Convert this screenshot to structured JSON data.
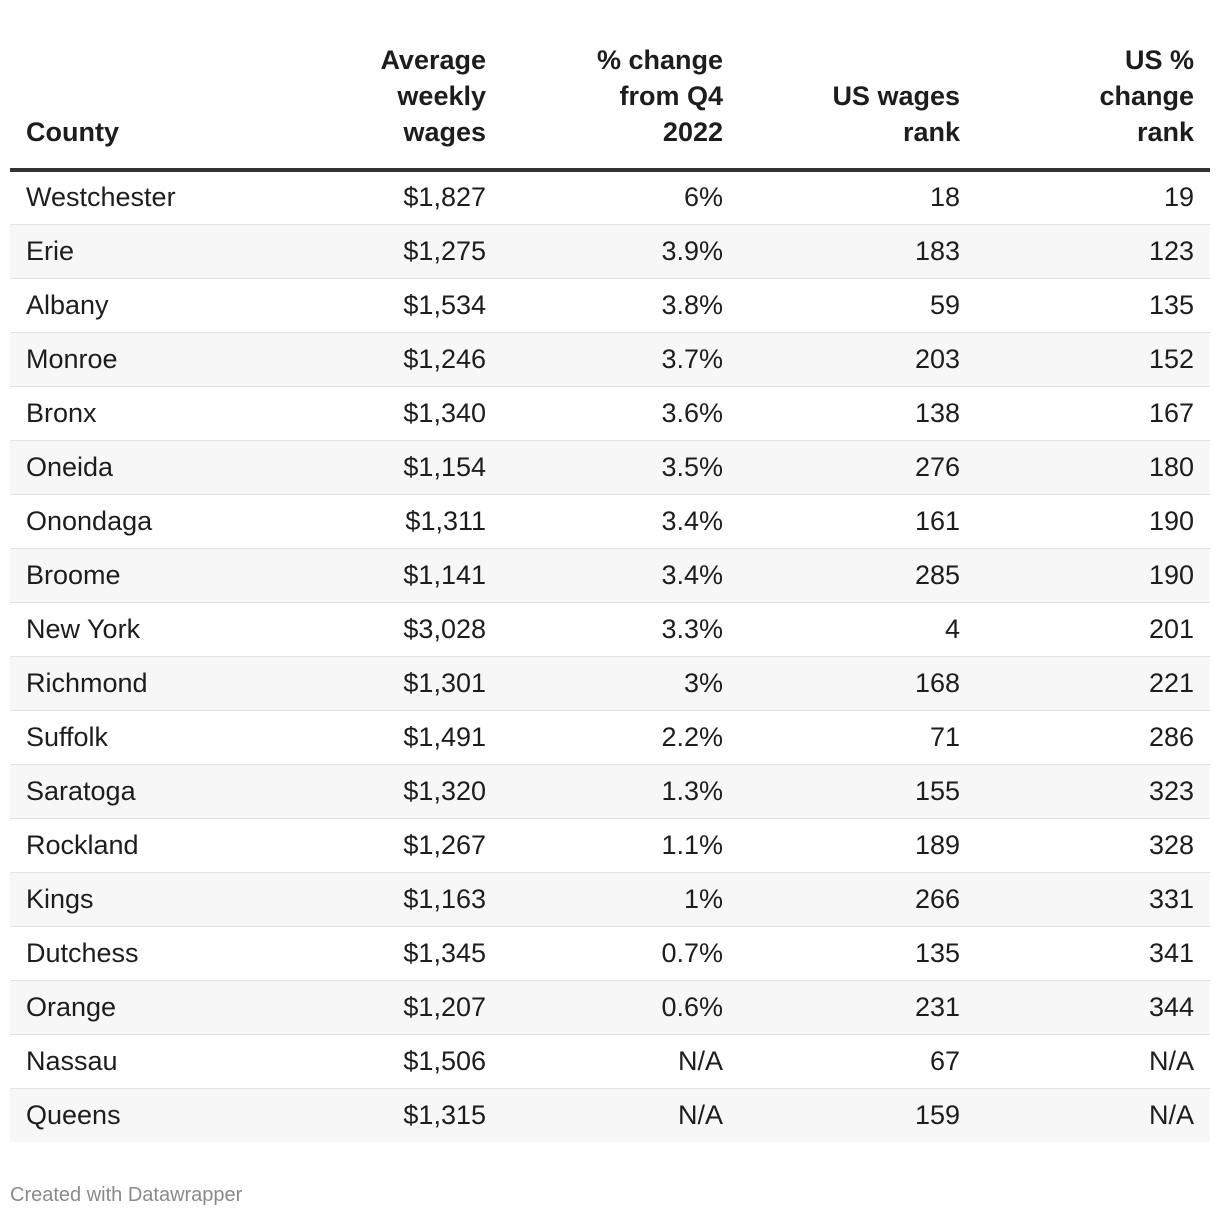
{
  "chart_data": {
    "type": "table",
    "columns": [
      "County",
      "Average weekly wages",
      "% change from Q4 2022",
      "US wages rank",
      "US % change rank"
    ],
    "rows": [
      [
        "Westchester",
        "$1,827",
        "6%",
        "18",
        "19"
      ],
      [
        "Erie",
        "$1,275",
        "3.9%",
        "183",
        "123"
      ],
      [
        "Albany",
        "$1,534",
        "3.8%",
        "59",
        "135"
      ],
      [
        "Monroe",
        "$1,246",
        "3.7%",
        "203",
        "152"
      ],
      [
        "Bronx",
        "$1,340",
        "3.6%",
        "138",
        "167"
      ],
      [
        "Oneida",
        "$1,154",
        "3.5%",
        "276",
        "180"
      ],
      [
        "Onondaga",
        "$1,311",
        "3.4%",
        "161",
        "190"
      ],
      [
        "Broome",
        "$1,141",
        "3.4%",
        "285",
        "190"
      ],
      [
        "New York",
        "$3,028",
        "3.3%",
        "4",
        "201"
      ],
      [
        "Richmond",
        "$1,301",
        "3%",
        "168",
        "221"
      ],
      [
        "Suffolk",
        "$1,491",
        "2.2%",
        "71",
        "286"
      ],
      [
        "Saratoga",
        "$1,320",
        "1.3%",
        "155",
        "323"
      ],
      [
        "Rockland",
        "$1,267",
        "1.1%",
        "189",
        "328"
      ],
      [
        "Kings",
        "$1,163",
        "1%",
        "266",
        "331"
      ],
      [
        "Dutchess",
        "$1,345",
        "0.7%",
        "135",
        "341"
      ],
      [
        "Orange",
        "$1,207",
        "0.6%",
        "231",
        "344"
      ],
      [
        "Nassau",
        "$1,506",
        "N/A",
        "67",
        "N/A"
      ],
      [
        "Queens",
        "$1,315",
        "N/A",
        "159",
        "N/A"
      ]
    ]
  },
  "header": {
    "county": "County",
    "wages_line1": "Average",
    "wages_line2": "weekly",
    "wages_line3": "wages",
    "change_line1": "% change",
    "change_line2": "from Q4",
    "change_line3": "2022",
    "rank_line1": "US wages",
    "rank_line2": "rank",
    "urank_line1": "US %",
    "urank_line2": "change",
    "urank_line3": "rank"
  },
  "footer": {
    "credit": "Created with Datawrapper"
  },
  "colors": {
    "text": "#1d1d1d",
    "header_rule": "#333333",
    "stripe": "#f7f7f7",
    "row_rule": "#e3e3e3",
    "footer_text": "#8a8a8a"
  }
}
